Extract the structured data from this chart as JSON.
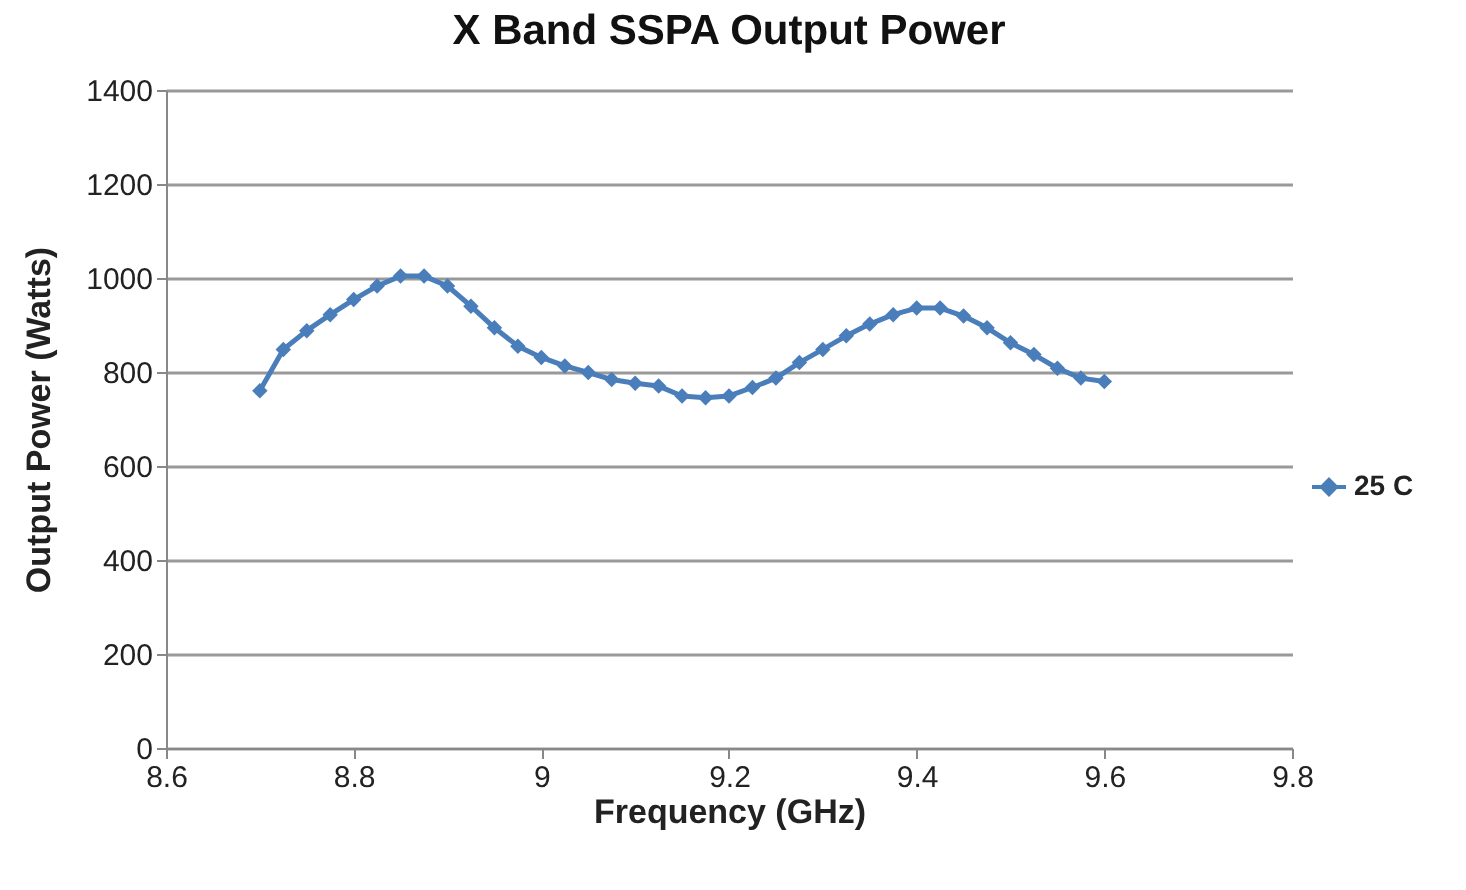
{
  "chart_data": {
    "type": "line",
    "title": "X Band SSPA Output Power",
    "xlabel": "Frequency (GHz)",
    "ylabel": "Output  Power  (Watts)",
    "x": [
      8.7,
      8.725,
      8.75,
      8.775,
      8.8,
      8.825,
      8.85,
      8.875,
      8.9,
      8.925,
      8.95,
      8.975,
      9,
      9.025,
      9.05,
      9.075,
      9.1,
      9.125,
      9.15,
      9.175,
      9.2,
      9.225,
      9.25,
      9.275,
      9.3,
      9.325,
      9.35,
      9.375,
      9.4,
      9.425,
      9.45,
      9.475,
      9.5,
      9.525,
      9.55,
      9.575,
      9.6
    ],
    "series": [
      {
        "name": "25 C",
        "color": "#4a7ebb",
        "values": [
          760,
          848,
          888,
          922,
          954,
          983,
          1004,
          1004,
          983,
          940,
          894,
          855,
          831,
          813,
          799,
          784,
          776,
          770,
          749,
          745,
          749,
          767,
          787,
          820,
          848,
          877,
          902,
          922,
          936,
          936,
          919,
          894,
          862,
          837,
          808,
          787,
          780
        ]
      }
    ],
    "xlim": [
      8.6,
      9.8
    ],
    "xticks": [
      8.6,
      8.8,
      9,
      9.2,
      9.4,
      9.6,
      9.8
    ],
    "ylim": [
      0,
      1400
    ],
    "yticks": [
      0,
      200,
      400,
      600,
      800,
      1000,
      1200,
      1400
    ],
    "grid": "y",
    "legend": "right",
    "marker": "diamond",
    "line_style": "solid"
  }
}
